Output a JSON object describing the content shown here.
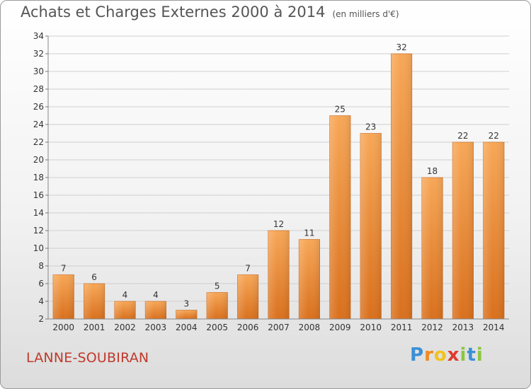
{
  "title": "Achats et Charges Externes 2000 à 2014",
  "subtitle": "(en milliers d'€)",
  "commune": "LANNE-SOUBIRAN",
  "brand": {
    "letters": [
      "P",
      "r",
      "o",
      "x",
      "i",
      "t",
      "i"
    ],
    "colors": [
      "#3a8fd6",
      "#f08a1c",
      "#f2c21b",
      "#e03a2c",
      "#8cc63f",
      "#3a8fd6",
      "#8cc63f"
    ]
  },
  "chart_data": {
    "type": "bar",
    "categories": [
      "2000",
      "2001",
      "2002",
      "2003",
      "2004",
      "2005",
      "2006",
      "2007",
      "2008",
      "2009",
      "2010",
      "2011",
      "2012",
      "2013",
      "2014"
    ],
    "values": [
      7,
      6,
      4,
      4,
      3,
      5,
      7,
      12,
      11,
      25,
      23,
      32,
      18,
      22,
      22
    ],
    "xlabel": "",
    "ylabel": "",
    "ylim": [
      2,
      34
    ],
    "yticks": [
      2,
      4,
      6,
      8,
      10,
      12,
      14,
      16,
      18,
      20,
      22,
      24,
      26,
      28,
      30,
      32,
      34
    ],
    "grid": true,
    "bar_color": "#f0902e",
    "data_labels": true
  }
}
